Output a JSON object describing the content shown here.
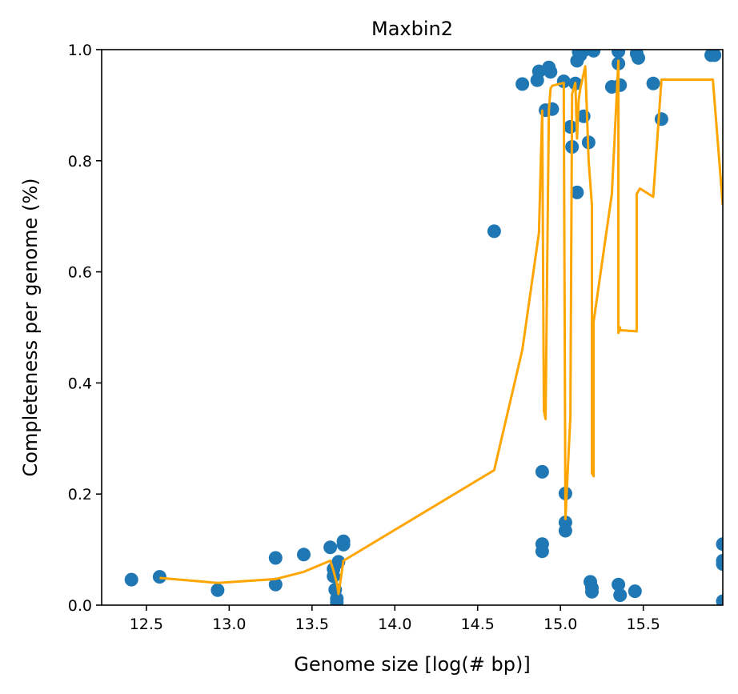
{
  "chart_data": {
    "type": "scatter",
    "title": "Maxbin2",
    "xlabel": "Genome size [log(# bp)]",
    "ylabel": "Completeness per genome (%)",
    "xlim": [
      12.23,
      15.98
    ],
    "ylim": [
      0.0,
      1.0
    ],
    "x_ticks": [
      12.5,
      13.0,
      13.5,
      14.0,
      14.5,
      15.0,
      15.5
    ],
    "x_tick_labels": [
      "12.5",
      "13.0",
      "13.5",
      "14.0",
      "14.5",
      "15.0",
      "15.5"
    ],
    "y_ticks": [
      0.0,
      0.2,
      0.4,
      0.6,
      0.8,
      1.0
    ],
    "y_tick_labels": [
      "0.0",
      "0.2",
      "0.4",
      "0.6",
      "0.8",
      "1.0"
    ],
    "grid": false,
    "colors": {
      "scatter": "#1f77b4",
      "line": "#ffa500"
    },
    "series": [
      {
        "name": "genomes",
        "kind": "scatter",
        "x": [
          12.41,
          12.58,
          12.93,
          13.28,
          13.28,
          13.45,
          13.61,
          13.63,
          13.63,
          13.64,
          13.65,
          13.65,
          13.66,
          13.69,
          13.69,
          14.6,
          14.77,
          14.86,
          14.87,
          14.89,
          14.89,
          14.89,
          14.91,
          14.93,
          14.94,
          14.95,
          15.02,
          15.03,
          15.03,
          15.03,
          15.06,
          15.07,
          15.09,
          15.1,
          15.1,
          15.11,
          15.12,
          15.14,
          15.15,
          15.17,
          15.18,
          15.19,
          15.19,
          15.2,
          15.31,
          15.35,
          15.35,
          15.35,
          15.36,
          15.36,
          15.45,
          15.46,
          15.47,
          15.56,
          15.61,
          15.91,
          15.92,
          15.93,
          15.98,
          15.98,
          15.98,
          15.98
        ],
        "y": [
          0.046,
          0.051,
          0.027,
          0.085,
          0.037,
          0.091,
          0.104,
          0.065,
          0.052,
          0.028,
          0.012,
          0.005,
          0.078,
          0.115,
          0.109,
          0.673,
          0.938,
          0.945,
          0.961,
          0.24,
          0.11,
          0.097,
          0.891,
          0.968,
          0.96,
          0.893,
          0.943,
          0.201,
          0.149,
          0.134,
          0.861,
          0.825,
          0.939,
          0.743,
          0.98,
          0.996,
          0.99,
          0.88,
          1.0,
          0.833,
          0.042,
          0.031,
          0.024,
          0.998,
          0.933,
          0.975,
          0.997,
          0.037,
          0.018,
          0.936,
          0.025,
          0.993,
          0.985,
          0.939,
          0.875,
          0.99,
          0.994,
          0.99,
          0.007,
          0.11,
          0.08,
          0.074
        ]
      },
      {
        "name": "trend",
        "kind": "line",
        "x": [
          12.58,
          12.93,
          13.28,
          13.45,
          13.61,
          13.63,
          13.64,
          13.65,
          13.66,
          13.69,
          14.6,
          14.77,
          14.87,
          14.89,
          14.9,
          14.91,
          14.93,
          14.94,
          14.95,
          15.02,
          15.03,
          15.06,
          15.07,
          15.09,
          15.1,
          15.11,
          15.12,
          15.15,
          15.17,
          15.19,
          15.19,
          15.2,
          15.2,
          15.31,
          15.35,
          15.35,
          15.36,
          15.36,
          15.46,
          15.46,
          15.48,
          15.56,
          15.61,
          15.92,
          15.98
        ],
        "y": [
          0.049,
          0.04,
          0.047,
          0.06,
          0.08,
          0.062,
          0.05,
          0.04,
          0.02,
          0.08,
          0.243,
          0.46,
          0.67,
          0.89,
          0.35,
          0.335,
          0.89,
          0.93,
          0.935,
          0.94,
          0.155,
          0.34,
          0.92,
          0.94,
          0.84,
          0.91,
          0.93,
          0.97,
          0.8,
          0.72,
          0.238,
          0.232,
          0.51,
          0.74,
          0.98,
          0.49,
          0.5,
          0.495,
          0.493,
          0.74,
          0.75,
          0.735,
          0.946,
          0.946,
          0.72
        ]
      }
    ]
  }
}
